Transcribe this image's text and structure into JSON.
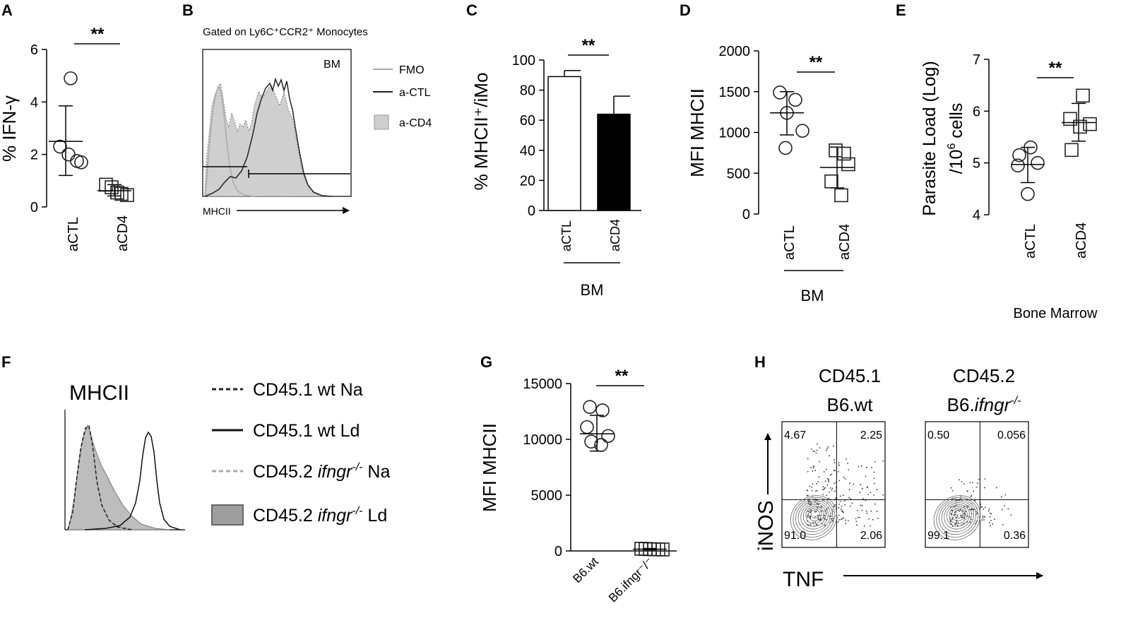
{
  "chart_data": [
    {
      "panel": "A",
      "type": "scatter",
      "title": "",
      "xlabel": "",
      "ylabel": "% IFN-γ",
      "ylim": [
        0,
        6
      ],
      "yticks": [
        "0",
        "2",
        "4",
        "6"
      ],
      "categories": [
        "aCTL",
        "aCD4"
      ],
      "series": [
        {
          "name": "aCTL",
          "marker": "circle",
          "values": [
            4.9,
            2.3,
            2.0,
            1.75,
            1.7
          ],
          "mean": 2.5,
          "sd_low": 1.2,
          "sd_high": 3.85
        },
        {
          "name": "aCD4",
          "marker": "square",
          "values": [
            0.85,
            0.75,
            0.55,
            0.5,
            0.45
          ],
          "mean": 0.62,
          "sd_low": 0.42,
          "sd_high": 0.85
        }
      ],
      "significance": "**"
    },
    {
      "panel": "B",
      "type": "histogram",
      "title": "Gated on Ly6C⁺CCR2⁺ Monocytes",
      "tag": "BM",
      "xlabel": "MHCII",
      "legend": [
        "FMO",
        "a-CTL",
        "a-CD4"
      ]
    },
    {
      "panel": "C",
      "type": "bar",
      "ylabel": "% MHCII⁺/iMo",
      "ylim": [
        0,
        100
      ],
      "yticks": [
        "0",
        "20",
        "40",
        "60",
        "80",
        "100"
      ],
      "categories": [
        "aCTL",
        "aCD4"
      ],
      "values": [
        89,
        64
      ],
      "errors": [
        4,
        12
      ],
      "group_label": "BM",
      "significance": "**"
    },
    {
      "panel": "D",
      "type": "scatter",
      "ylabel": "MFI MHCII",
      "ylim": [
        0,
        2000
      ],
      "yticks": [
        "0",
        "500",
        "1000",
        "1500",
        "2000"
      ],
      "categories": [
        "aCTL",
        "aCD4"
      ],
      "series": [
        {
          "name": "aCTL",
          "marker": "circle",
          "values": [
            1490,
            1400,
            1240,
            1020,
            810
          ],
          "mean": 1240,
          "sd_low": 970,
          "sd_high": 1500
        },
        {
          "name": "aCD4",
          "marker": "square",
          "values": [
            780,
            740,
            610,
            400,
            230
          ],
          "mean": 570,
          "sd_low": 320,
          "sd_high": 820
        }
      ],
      "group_label": "BM",
      "significance": "**"
    },
    {
      "panel": "E",
      "type": "scatter",
      "ylabel_line1": "Parasite Load (Log)",
      "ylabel_line2": "/10",
      "ylabel_sup": "6",
      "ylabel_line2_end": " cells",
      "ylim": [
        4,
        7
      ],
      "yticks": [
        "4",
        "5",
        "6",
        "7"
      ],
      "categories": [
        "aCTL",
        "aCD4"
      ],
      "series": [
        {
          "name": "aCTL",
          "marker": "circle",
          "values": [
            5.3,
            5.15,
            5.0,
            4.95,
            4.4
          ],
          "mean": 4.97,
          "sd_low": 4.62,
          "sd_high": 5.3
        },
        {
          "name": "aCD4",
          "marker": "square",
          "values": [
            6.3,
            5.85,
            5.75,
            5.7,
            5.25
          ],
          "mean": 5.78,
          "sd_low": 5.42,
          "sd_high": 6.15
        }
      ],
      "group_label": "Bone Marrow",
      "significance": "**"
    },
    {
      "panel": "F",
      "type": "histogram",
      "title": "MHCII",
      "legend": [
        {
          "pre": "CD45.1 wt Na",
          "italic": "",
          "sup": "",
          "post": ""
        },
        {
          "pre": "CD45.1 wt Ld",
          "italic": "",
          "sup": "",
          "post": ""
        },
        {
          "pre": "CD45.2 ",
          "italic": "ifngr",
          "sup": "-/-",
          "post": " Na"
        },
        {
          "pre": "CD45.2 ",
          "italic": "ifngr",
          "sup": "-/-",
          "post": " Ld"
        }
      ]
    },
    {
      "panel": "G",
      "type": "scatter",
      "ylabel": "MFI MHCII",
      "ylim": [
        0,
        15000
      ],
      "yticks": [
        "0",
        "5000",
        "10000",
        "15000"
      ],
      "categories": [
        "B6.wt",
        "B6.ifngr⁻/⁻"
      ],
      "series": [
        {
          "name": "B6.wt",
          "marker": "circle",
          "values": [
            12900,
            12600,
            11100,
            10300,
            9800,
            9500
          ],
          "mean": 10500,
          "sd_low": 8950,
          "sd_high": 12150
        },
        {
          "name": "B6.ifngr-/-",
          "marker": "square",
          "values": [
            200,
            180,
            160,
            150,
            140,
            130
          ],
          "mean": 160,
          "sd_low": 100,
          "sd_high": 220
        }
      ],
      "significance": "**"
    },
    {
      "panel": "H",
      "type": "scatter",
      "xlabel": "TNF",
      "ylabel": "iNOS",
      "plots": [
        {
          "title1": "CD45.1",
          "title2": "B6.wt",
          "title2_italic": "",
          "title2_sup": "",
          "quadrants": [
            "4.67",
            "2.25",
            "91.0",
            "2.06"
          ]
        },
        {
          "title1": "CD45.2",
          "title2": "B6.",
          "title2_italic": "ifngr",
          "title2_sup": "-/-",
          "quadrants": [
            "0.50",
            "0.056",
            "99.1",
            "0.36"
          ]
        }
      ]
    }
  ]
}
